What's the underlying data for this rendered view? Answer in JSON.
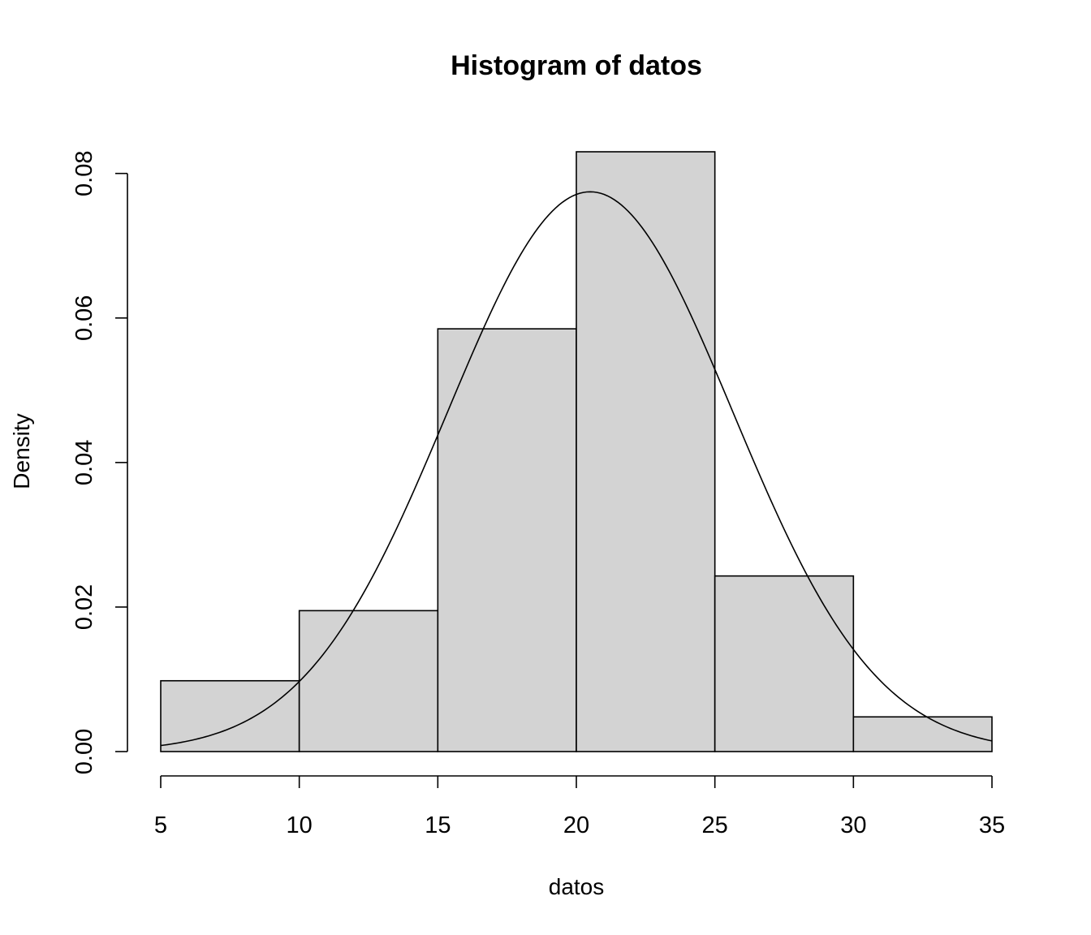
{
  "chart_data": {
    "type": "bar",
    "title": "Histogram of datos",
    "xlabel": "datos",
    "ylabel": "Density",
    "xlim": [
      5,
      35
    ],
    "ylim": [
      0,
      0.083
    ],
    "x_ticks": [
      5,
      10,
      15,
      20,
      25,
      30,
      35
    ],
    "y_ticks": [
      0.0,
      0.02,
      0.04,
      0.06,
      0.08
    ],
    "y_tick_labels": [
      "0.00",
      "0.02",
      "0.04",
      "0.06",
      "0.08"
    ],
    "bins": [
      {
        "from": 5,
        "to": 10,
        "density": 0.0098
      },
      {
        "from": 10,
        "to": 15,
        "density": 0.0195
      },
      {
        "from": 15,
        "to": 20,
        "density": 0.0585
      },
      {
        "from": 20,
        "to": 25,
        "density": 0.083
      },
      {
        "from": 25,
        "to": 30,
        "density": 0.0243
      },
      {
        "from": 30,
        "to": 35,
        "density": 0.0048
      }
    ],
    "bar_color": "#d3d3d3",
    "overlay": {
      "type": "normal-density-curve",
      "mean": 20.5,
      "sd": 5.15
    },
    "grid": false,
    "legend": "none"
  }
}
